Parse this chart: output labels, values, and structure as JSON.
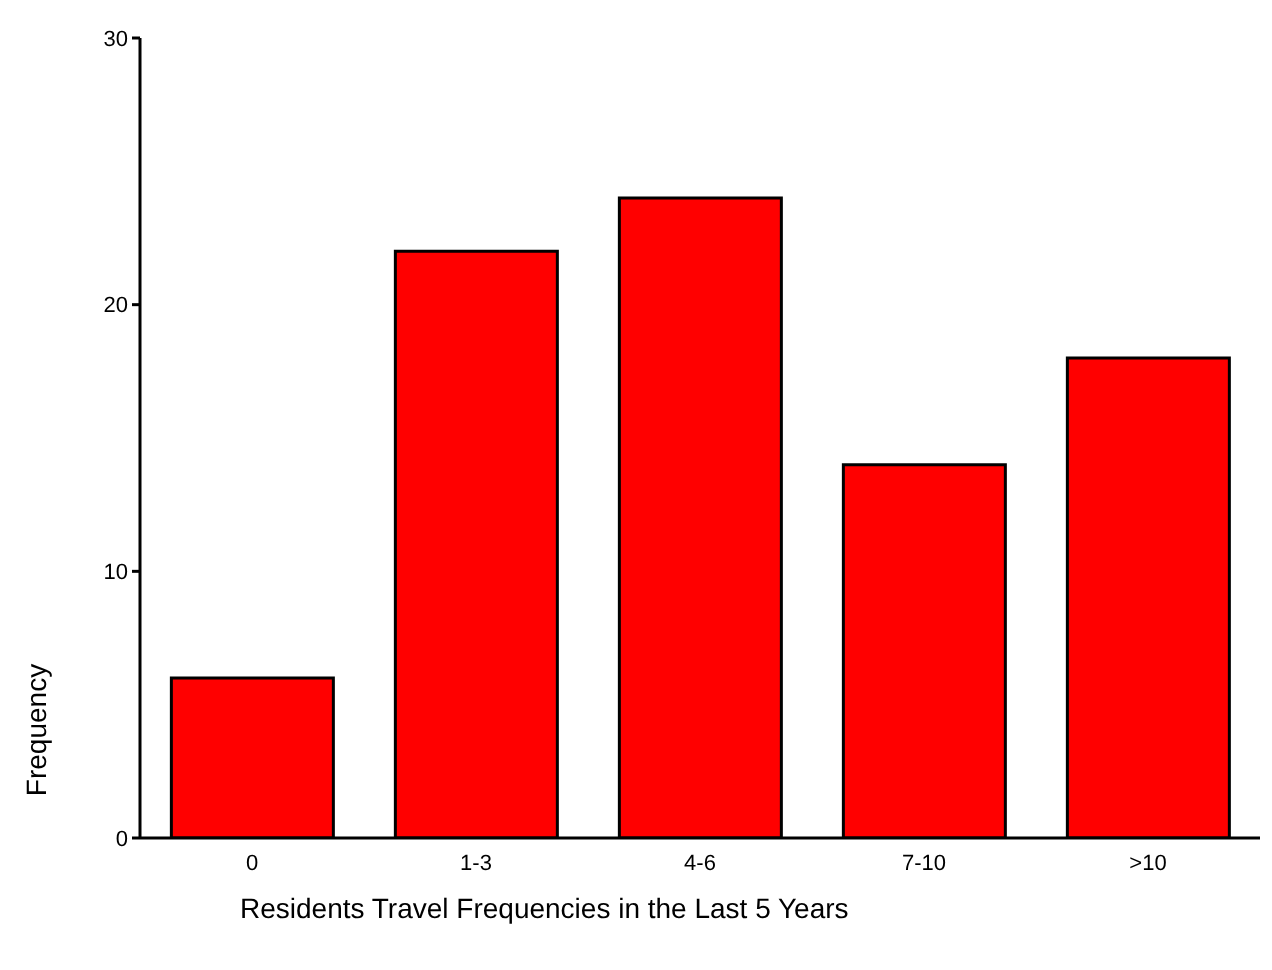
{
  "chart_data": {
    "type": "bar",
    "xlabel": "Residents Travel Frequencies in the Last 5 Years",
    "ylabel": "Frequency",
    "categories": [
      "0",
      "1-3",
      "4-6",
      "7-10",
      ">10"
    ],
    "values": [
      6,
      22,
      24,
      14,
      18
    ],
    "color": "#ff0000",
    "ylim": [
      0,
      30
    ],
    "yticks": [
      0,
      10,
      20,
      30
    ],
    "grid": false,
    "legend": false
  }
}
